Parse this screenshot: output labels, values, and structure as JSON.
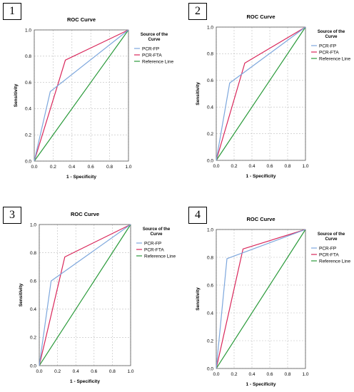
{
  "colors": {
    "PCR-FP": "#7da7dd",
    "PCR-FTA": "#d9265a",
    "Reference Line": "#2a9a3a",
    "grid": "#bdbdbd",
    "axis": "#555555"
  },
  "chart_data": [
    {
      "panel_number": "1",
      "type": "line",
      "title": "ROC Curve",
      "xlabel": "1 - Specificity",
      "ylabel": "Sensitivity",
      "xlim": [
        0,
        1
      ],
      "ylim": [
        0,
        1
      ],
      "xticks": [
        "0.0",
        "0.2",
        "0.4",
        "0.6",
        "0.8",
        "1.0"
      ],
      "yticks": [
        "0.0",
        "0.2",
        "0.4",
        "0.6",
        "0.8",
        "1.0"
      ],
      "grid": true,
      "legend": {
        "title": "Source of the Curve",
        "position": "right",
        "entries": [
          "PCR-FP",
          "PCR-FTA",
          "Reference Line"
        ]
      },
      "series": [
        {
          "name": "PCR-FP",
          "points": [
            [
              0,
              0
            ],
            [
              0.17,
              0.53
            ],
            [
              1,
              1
            ]
          ]
        },
        {
          "name": "PCR-FTA",
          "points": [
            [
              0,
              0
            ],
            [
              0.33,
              0.77
            ],
            [
              1,
              1
            ]
          ]
        },
        {
          "name": "Reference Line",
          "points": [
            [
              0,
              0
            ],
            [
              1,
              1
            ]
          ]
        }
      ]
    },
    {
      "panel_number": "2",
      "type": "line",
      "title": "ROC Curve",
      "xlabel": "1 - Specificity",
      "ylabel": "Sensitivity",
      "xlim": [
        0,
        1
      ],
      "ylim": [
        0,
        1
      ],
      "xticks": [
        "0.0",
        "0.2",
        "0.4",
        "0.6",
        "0.8",
        "1.0"
      ],
      "yticks": [
        "0.0",
        "0.2",
        "0.4",
        "0.6",
        "0.8",
        "1.0"
      ],
      "grid": true,
      "legend": {
        "title": "Source of the Curve",
        "position": "right",
        "entries": [
          "PCR-FP",
          "PCR-FTA",
          "Reference Line"
        ]
      },
      "series": [
        {
          "name": "PCR-FP",
          "points": [
            [
              0,
              0
            ],
            [
              0.15,
              0.58
            ],
            [
              1,
              1
            ]
          ]
        },
        {
          "name": "PCR-FTA",
          "points": [
            [
              0,
              0
            ],
            [
              0.32,
              0.73
            ],
            [
              1,
              1
            ]
          ]
        },
        {
          "name": "Reference Line",
          "points": [
            [
              0,
              0
            ],
            [
              1,
              1
            ]
          ]
        }
      ]
    },
    {
      "panel_number": "3",
      "type": "line",
      "title": "ROC Curve",
      "xlabel": "1 - Specificity",
      "ylabel": "Sensitivity",
      "xlim": [
        0,
        1
      ],
      "ylim": [
        0,
        1
      ],
      "xticks": [
        "0.0",
        "0.2",
        "0.4",
        "0.6",
        "0.8",
        "1.0"
      ],
      "yticks": [
        "0.0",
        "0.2",
        "0.4",
        "0.6",
        "0.8",
        "1.0"
      ],
      "grid": true,
      "legend": {
        "title": "Source of the Curve",
        "position": "right",
        "entries": [
          "PCR-FP",
          "PCR-FTA",
          "Reference Line"
        ]
      },
      "series": [
        {
          "name": "PCR-FP",
          "points": [
            [
              0,
              0
            ],
            [
              0.13,
              0.6
            ],
            [
              1,
              1
            ]
          ]
        },
        {
          "name": "PCR-FTA",
          "points": [
            [
              0,
              0
            ],
            [
              0.28,
              0.77
            ],
            [
              1,
              1
            ]
          ]
        },
        {
          "name": "Reference Line",
          "points": [
            [
              0,
              0
            ],
            [
              1,
              1
            ]
          ]
        }
      ]
    },
    {
      "panel_number": "4",
      "type": "line",
      "title": "ROC Curve",
      "xlabel": "1 - Specificity",
      "ylabel": "Sensitivity",
      "xlim": [
        0,
        1
      ],
      "ylim": [
        0,
        1
      ],
      "xticks": [
        "0.0",
        "0.2",
        "0.4",
        "0.6",
        "0.8",
        "1.0"
      ],
      "yticks": [
        "0.0",
        "0.2",
        "0.4",
        "0.6",
        "0.8",
        "1.0"
      ],
      "grid": true,
      "legend": {
        "title": "Source of the Curve",
        "position": "right",
        "entries": [
          "PCR-FP",
          "PCR-FTA",
          "Reference Line"
        ]
      },
      "series": [
        {
          "name": "PCR-FP",
          "points": [
            [
              0,
              0
            ],
            [
              0.12,
              0.79
            ],
            [
              1,
              1
            ]
          ]
        },
        {
          "name": "PCR-FTA",
          "points": [
            [
              0,
              0
            ],
            [
              0.3,
              0.86
            ],
            [
              1,
              1
            ]
          ]
        },
        {
          "name": "Reference Line",
          "points": [
            [
              0,
              0
            ],
            [
              1,
              1
            ]
          ]
        }
      ]
    }
  ]
}
